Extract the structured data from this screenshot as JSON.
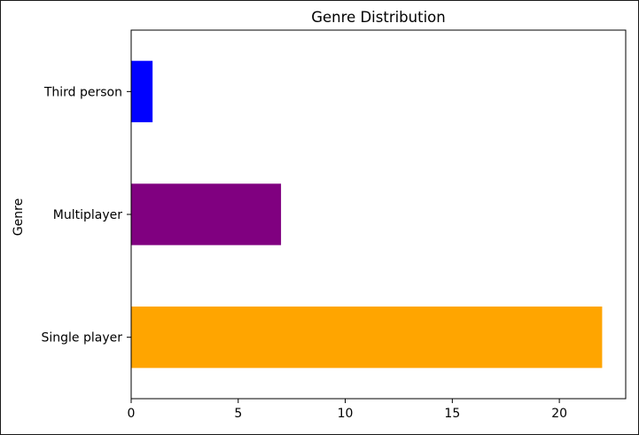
{
  "chart_data": {
    "type": "bar",
    "orientation": "horizontal",
    "title": "Genre Distribution",
    "xlabel": "",
    "ylabel": "Genre",
    "categories": [
      "Single player",
      "Multiplayer",
      "Third person"
    ],
    "values": [
      22,
      7,
      1
    ],
    "colors": [
      "#ffa500",
      "#800080",
      "#0000ff"
    ],
    "xlim": [
      0,
      23.1
    ],
    "xticks": [
      0,
      5,
      10,
      15,
      20
    ],
    "xtick_labels": [
      "0",
      "5",
      "10",
      "15",
      "20"
    ],
    "grid": false,
    "legend": "none"
  }
}
